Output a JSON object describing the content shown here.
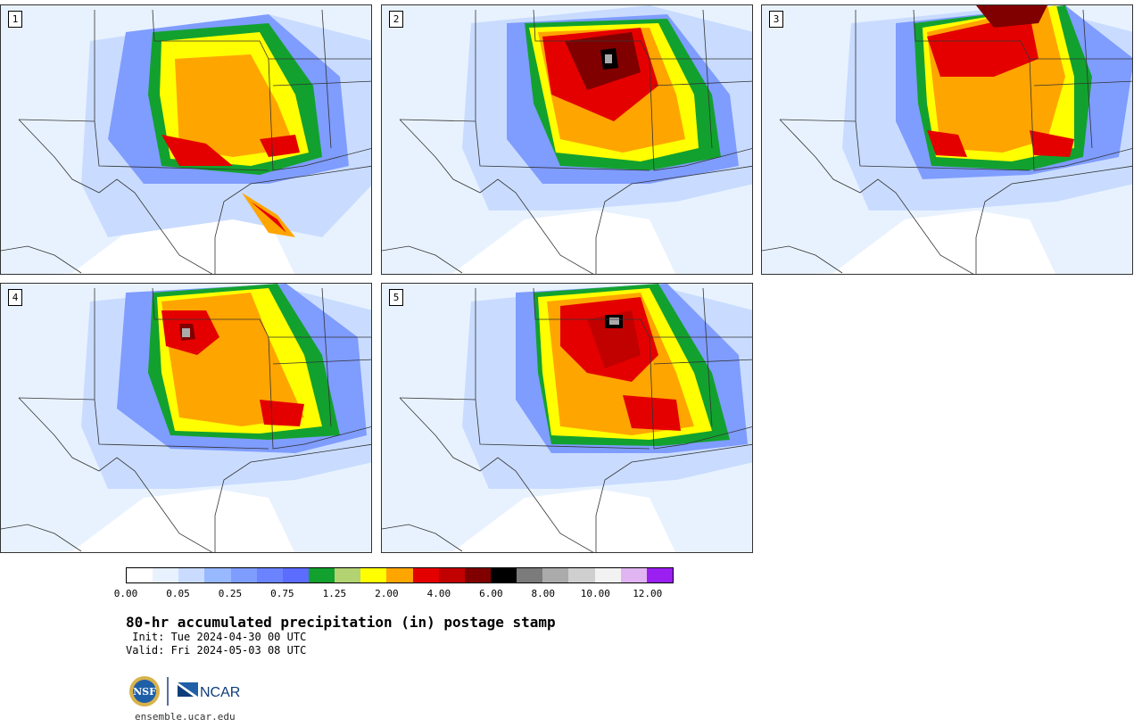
{
  "panels": [
    {
      "label": "1"
    },
    {
      "label": "2"
    },
    {
      "label": "3"
    },
    {
      "label": "4"
    },
    {
      "label": "5"
    }
  ],
  "colorbar": {
    "colors": [
      "#ffffff",
      "#e8f2ff",
      "#c9dcff",
      "#98b8ff",
      "#7f9cff",
      "#6b83ff",
      "#5c6cff",
      "#12a12f",
      "#b3d372",
      "#ffff00",
      "#ffa500",
      "#e50000",
      "#c10000",
      "#800000",
      "#000000",
      "#7b7b7b",
      "#ababab",
      "#cfcfcf",
      "#f2f2f2",
      "#e1b4f2",
      "#9a1ff0"
    ],
    "tick_labels": [
      "0.00",
      "0.05",
      "0.25",
      "0.75",
      "1.25",
      "2.00",
      "4.00",
      "6.00",
      "8.00",
      "10.00",
      "12.00"
    ]
  },
  "title": "80-hr accumulated precipitation (in) postage stamp",
  "init": " Init: Tue 2024-04-30 00 UTC",
  "valid": "Valid: Fri 2024-05-03 08 UTC",
  "logo": {
    "nsf": "NSF",
    "ncar": "NCAR"
  },
  "url": "ensemble.ucar.edu"
}
